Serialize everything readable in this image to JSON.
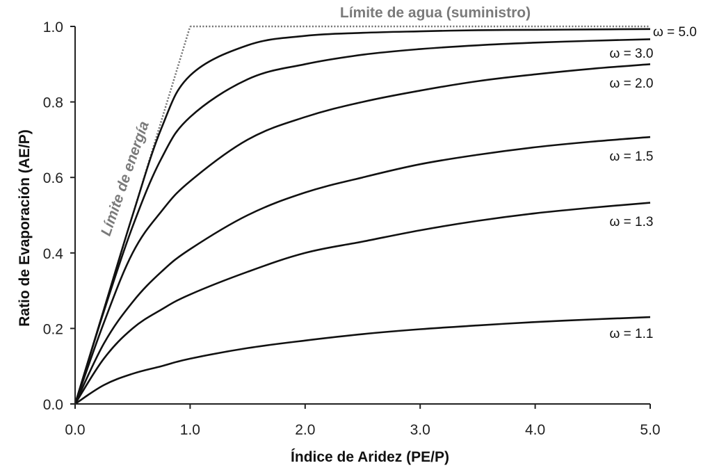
{
  "chart_data": {
    "type": "line",
    "xlabel": "Índice de Aridez (PE/P)",
    "ylabel": "Ratio de Evaporación (AE/P)",
    "xlim": [
      0,
      5
    ],
    "ylim": [
      0,
      1
    ],
    "x_ticks": [
      "0.0",
      "1.0",
      "2.0",
      "3.0",
      "4.0",
      "5.0"
    ],
    "y_ticks": [
      "0.0",
      "0.2",
      "0.4",
      "0.6",
      "0.8",
      "1.0"
    ],
    "grid": false,
    "legend": "none",
    "x": [
      0.0,
      0.25,
      0.5,
      0.75,
      1.0,
      1.5,
      2.0,
      2.5,
      3.0,
      3.5,
      4.0,
      4.5,
      5.0
    ],
    "series": [
      {
        "name": "ω = 5.0",
        "label": "ω = 5.0",
        "values": [
          0,
          0.25,
          0.5,
          0.73,
          0.87,
          0.95,
          0.975,
          0.983,
          0.987,
          0.99,
          0.991,
          0.992,
          0.993
        ]
      },
      {
        "name": "ω = 3.0",
        "label": "ω = 3.0",
        "values": [
          0,
          0.245,
          0.47,
          0.65,
          0.76,
          0.86,
          0.9,
          0.925,
          0.94,
          0.95,
          0.957,
          0.962,
          0.966
        ]
      },
      {
        "name": "ω = 2.0",
        "label": "ω = 2.0",
        "values": [
          0,
          0.215,
          0.4,
          0.51,
          0.59,
          0.7,
          0.76,
          0.8,
          0.83,
          0.855,
          0.873,
          0.888,
          0.9
        ]
      },
      {
        "name": "ω = 1.5",
        "label": "ω = 1.5",
        "values": [
          0,
          0.16,
          0.27,
          0.35,
          0.41,
          0.5,
          0.56,
          0.6,
          0.635,
          0.66,
          0.68,
          0.695,
          0.707
        ]
      },
      {
        "name": "ω = 1.3",
        "label": "ω = 1.3",
        "values": [
          0,
          0.12,
          0.2,
          0.25,
          0.29,
          0.35,
          0.4,
          0.43,
          0.46,
          0.485,
          0.505,
          0.52,
          0.533
        ]
      },
      {
        "name": "ω = 1.1",
        "label": "ω = 1.1",
        "values": [
          0,
          0.05,
          0.08,
          0.1,
          0.12,
          0.148,
          0.168,
          0.185,
          0.198,
          0.208,
          0.217,
          0.224,
          0.23
        ]
      }
    ],
    "annotations": {
      "water_limit": {
        "label": "Límite de agua (suministro)",
        "x": [
          1,
          5
        ],
        "y": [
          1,
          1
        ]
      },
      "energy_limit": {
        "label": "Límite de energía",
        "x": [
          0,
          1
        ],
        "y": [
          0,
          1
        ]
      }
    },
    "colors": {
      "series": "#111111",
      "limits": "#6f6f6f",
      "limit_text": "#7a7a7a"
    }
  }
}
